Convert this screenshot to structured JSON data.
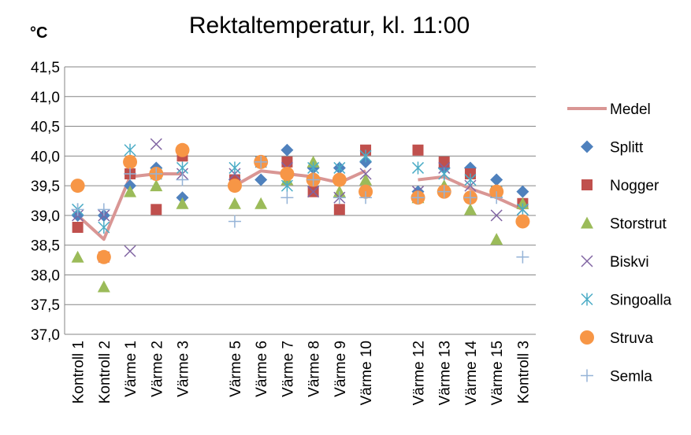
{
  "chart_data": {
    "type": "line",
    "title": "Rektaltemperatur, kl. 11:00",
    "y_label": "°C",
    "categories": [
      "Kontroll 1",
      "Kontroll 2",
      "Värme 1",
      "Värme 2",
      "Värme 3",
      null,
      "Värme 5",
      "Värme 6",
      "Värme 7",
      "Värme 8",
      "Värme 9",
      "Värme 10",
      null,
      "Värme 12",
      "Värme 13",
      "Värme 14",
      "Värme 15",
      "Kontroll 3"
    ],
    "ylim": [
      37.0,
      41.5
    ],
    "yticks": [
      {
        "value": 37.0,
        "label": "37,0"
      },
      {
        "value": 37.5,
        "label": "37,5"
      },
      {
        "value": 38.0,
        "label": "38,0"
      },
      {
        "value": 38.5,
        "label": "38,5"
      },
      {
        "value": 39.0,
        "label": "39,0"
      },
      {
        "value": 39.5,
        "label": "39,5"
      },
      {
        "value": 40.0,
        "label": "40,0"
      },
      {
        "value": 40.5,
        "label": "40,5"
      },
      {
        "value": 41.0,
        "label": "41,0"
      },
      {
        "value": 41.5,
        "label": "41,5"
      }
    ],
    "grid": true,
    "legend": "right",
    "series": [
      {
        "name": "Medel",
        "color": "#d99694",
        "marker": "line",
        "values": [
          39.0,
          38.6,
          39.65,
          39.7,
          39.7,
          null,
          39.5,
          39.75,
          39.7,
          39.65,
          39.55,
          39.75,
          null,
          39.6,
          39.65,
          39.45,
          39.3,
          39.1
        ]
      },
      {
        "name": "Splitt",
        "color": "#4f81bd",
        "marker": "diamond",
        "values": [
          39.0,
          39.0,
          39.5,
          39.8,
          39.3,
          null,
          39.6,
          39.6,
          40.1,
          39.8,
          39.8,
          39.9,
          null,
          39.4,
          39.8,
          39.8,
          39.6,
          39.4
        ]
      },
      {
        "name": "Nogger",
        "color": "#c0504d",
        "marker": "square",
        "values": [
          38.8,
          38.3,
          39.7,
          39.1,
          40.0,
          null,
          39.6,
          39.9,
          39.9,
          39.4,
          39.1,
          40.1,
          null,
          40.1,
          39.9,
          39.7,
          39.4,
          39.2
        ]
      },
      {
        "name": "Storstrut",
        "color": "#9bbb59",
        "marker": "triangle",
        "values": [
          38.3,
          37.8,
          39.4,
          39.5,
          39.2,
          null,
          39.2,
          39.2,
          39.6,
          39.9,
          39.4,
          39.6,
          null,
          39.3,
          39.5,
          39.1,
          38.6,
          39.2
        ]
      },
      {
        "name": "Biskvi",
        "color": "#8064a2",
        "marker": "x",
        "values": [
          39.0,
          39.0,
          38.4,
          40.2,
          39.7,
          null,
          39.7,
          39.9,
          39.8,
          39.4,
          39.3,
          39.7,
          null,
          39.4,
          39.8,
          39.5,
          39.0,
          39.1
        ]
      },
      {
        "name": "Singoalla",
        "color": "#4bacc6",
        "marker": "star",
        "values": [
          39.1,
          38.8,
          40.1,
          39.7,
          39.8,
          null,
          39.8,
          39.9,
          39.5,
          39.8,
          39.8,
          40.0,
          null,
          39.8,
          39.7,
          39.6,
          39.4,
          39.1
        ]
      },
      {
        "name": "Struva",
        "color": "#f79646",
        "marker": "circle",
        "values": [
          39.5,
          38.3,
          39.9,
          39.7,
          40.1,
          null,
          39.5,
          39.9,
          39.7,
          39.6,
          39.6,
          39.4,
          null,
          39.3,
          39.4,
          39.3,
          39.4,
          38.9
        ]
      },
      {
        "name": "Semla",
        "color": "#95b3d7",
        "marker": "plus",
        "values": [
          39.1,
          39.1,
          39.7,
          39.7,
          39.6,
          null,
          38.9,
          39.9,
          39.3,
          39.6,
          39.3,
          39.3,
          null,
          39.3,
          39.4,
          39.3,
          39.3,
          38.3
        ]
      }
    ]
  }
}
